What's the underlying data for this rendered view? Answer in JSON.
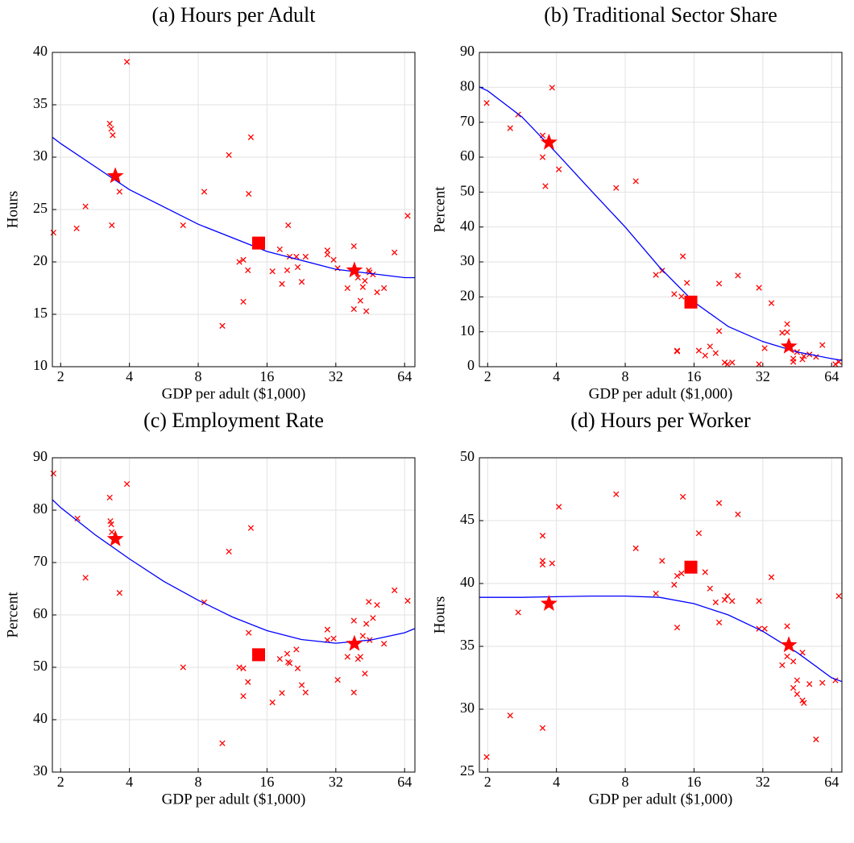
{
  "chart_data": [
    {
      "type": "scatter",
      "title": "(a) Hours per Adult",
      "xlabel": "GDP per adult ($1,000)",
      "ylabel": "Hours",
      "xscale": "log",
      "xlim": [
        1.84,
        71
      ],
      "xticks": [
        2,
        4,
        8,
        16,
        32,
        64
      ],
      "ylim": [
        10,
        40
      ],
      "yticks": [
        10,
        15,
        20,
        25,
        30,
        35,
        40
      ],
      "grid": true,
      "series": [
        {
          "marker": "x",
          "color": "#ff0000",
          "x": [
            1.86,
            2.35,
            2.57,
            3.28,
            3.33,
            3.38,
            3.35,
            3.62,
            3.9,
            6.87,
            8.5,
            10.2,
            10.9,
            12.1,
            12.6,
            12.6,
            13.2,
            13.3,
            13.6,
            16.9,
            18.2,
            18.6,
            19.6,
            19.8,
            20.1,
            21.5,
            21.8,
            22.7,
            23.6,
            29.4,
            29.4,
            31.3,
            32.6,
            36,
            38.4,
            38.4,
            40,
            41,
            42,
            42.9,
            43.5,
            44.6,
            45,
            46.5,
            48.5,
            52,
            57.8,
            66
          ],
          "y": [
            22.8,
            23.2,
            25.3,
            33.2,
            32.7,
            32.1,
            23.5,
            26.7,
            39.1,
            23.5,
            26.7,
            13.9,
            30.2,
            20,
            20.2,
            16.2,
            19.2,
            26.5,
            31.9,
            19.1,
            21.2,
            17.9,
            19.2,
            23.5,
            20.5,
            20.5,
            19.5,
            18.1,
            20.5,
            21.1,
            20.7,
            20.2,
            19.4,
            17.5,
            21.5,
            15.5,
            18.5,
            16.3,
            17.6,
            18.2,
            15.3,
            19.2,
            19,
            18.8,
            17.1,
            17.5,
            20.9,
            24.4
          ]
        },
        {
          "marker": "line",
          "color": "#0000ff",
          "x": [
            1.84,
            2,
            4,
            8,
            16,
            32,
            64,
            71
          ],
          "y": [
            31.9,
            31.3,
            26.9,
            23.6,
            21,
            19.3,
            18.5,
            18.5
          ]
        },
        {
          "marker": "star",
          "color": "#ff0000",
          "x": [
            3.47,
            38.6
          ],
          "y": [
            28.2,
            19.2
          ]
        },
        {
          "marker": "square",
          "color": "#ff0000",
          "x": [
            14.7
          ],
          "y": [
            21.8
          ]
        }
      ]
    },
    {
      "type": "scatter",
      "title": "(b) Traditional Sector Share",
      "xlabel": "GDP per adult ($1,000)",
      "ylabel": "Percent",
      "xscale": "log",
      "xlim": [
        1.84,
        71
      ],
      "xticks": [
        2,
        4,
        8,
        16,
        32,
        64
      ],
      "ylim": [
        0,
        90
      ],
      "yticks": [
        0,
        10,
        20,
        30,
        40,
        50,
        60,
        70,
        80,
        90
      ],
      "grid": true,
      "series": [
        {
          "marker": "x",
          "color": "#ff0000",
          "x": [
            1.98,
            2.51,
            2.72,
            3.48,
            3.48,
            3.58,
            3.83,
            4.1,
            7.3,
            8.9,
            10.9,
            11.6,
            13.1,
            13.5,
            13.5,
            14.1,
            14.3,
            14.9,
            16.8,
            17.9,
            18.8,
            19.9,
            20.6,
            20.6,
            21.8,
            22.4,
            23.5,
            24.9,
            30.8,
            30.8,
            32.6,
            34.9,
            38.9,
            40.9,
            40.9,
            43.5,
            43.5,
            45.2,
            47.7,
            48.4,
            51.2,
            54.7,
            58.3,
            66.5,
            68.8
          ],
          "y": [
            75.5,
            68.3,
            72.2,
            66.2,
            60,
            51.7,
            79.9,
            56.5,
            51.2,
            53.1,
            26.3,
            27.5,
            20.8,
            4.6,
            4.4,
            20.1,
            31.6,
            24,
            4.6,
            3.2,
            5.8,
            3.9,
            10.2,
            23.8,
            1.2,
            0.7,
            1.2,
            26.1,
            22.6,
            0.7,
            5.3,
            18.2,
            9.7,
            12.2,
            9.9,
            2.3,
            1.4,
            4.2,
            2.1,
            3,
            3.5,
            2.8,
            6.2,
            0.7,
            1.4
          ]
        },
        {
          "marker": "line",
          "color": "#0000ff",
          "x": [
            1.84,
            2,
            2.83,
            4,
            5.66,
            8,
            11.3,
            16,
            22.6,
            32,
            45.3,
            64,
            71
          ],
          "y": [
            80.1,
            79,
            71.5,
            61.2,
            50.5,
            40,
            28.5,
            18.5,
            11.5,
            7.2,
            4.2,
            2.3,
            1.8
          ]
        },
        {
          "marker": "star",
          "color": "#ff0000",
          "x": [
            3.71,
            41.6
          ],
          "y": [
            64.2,
            5.8
          ]
        },
        {
          "marker": "square",
          "color": "#ff0000",
          "x": [
            15.5
          ],
          "y": [
            18.5
          ]
        }
      ]
    },
    {
      "type": "scatter",
      "title": "(c) Employment Rate",
      "xlabel": "GDP per adult ($1,000)",
      "ylabel": "Percent",
      "xscale": "log",
      "xlim": [
        1.84,
        71
      ],
      "xticks": [
        2,
        4,
        8,
        16,
        32,
        64
      ],
      "ylim": [
        30,
        90
      ],
      "yticks": [
        30,
        40,
        50,
        60,
        70,
        80,
        90
      ],
      "grid": true,
      "series": [
        {
          "marker": "x",
          "color": "#ff0000",
          "x": [
            1.86,
            2.37,
            2.57,
            3.28,
            3.3,
            3.33,
            3.35,
            3.62,
            3.9,
            6.87,
            8.5,
            10.2,
            10.9,
            12.1,
            12.6,
            12.6,
            13.2,
            13.3,
            13.6,
            16.9,
            18.2,
            18.6,
            19.6,
            19.8,
            20.1,
            21.5,
            21.8,
            22.7,
            23.6,
            29.4,
            29.4,
            31.3,
            32.6,
            36,
            38.4,
            38.4,
            40,
            41,
            42,
            42.9,
            43.5,
            44.6,
            45,
            46.5,
            48.5,
            52,
            57.8,
            66
          ],
          "y": [
            87,
            78.4,
            67.1,
            82.4,
            77.9,
            77.3,
            75.8,
            64.2,
            85,
            50,
            62.4,
            35.5,
            72.1,
            50,
            49.8,
            44.5,
            47.2,
            56.6,
            76.6,
            43.3,
            51.6,
            45.1,
            52.6,
            51,
            50.8,
            53.4,
            49.8,
            46.6,
            45.2,
            57.2,
            55.2,
            55.5,
            47.6,
            52,
            58.9,
            45.2,
            51.6,
            52,
            56,
            48.8,
            58.3,
            62.5,
            55.2,
            59.4,
            61.9,
            54.5,
            64.7,
            62.7
          ]
        },
        {
          "marker": "line",
          "color": "#0000ff",
          "x": [
            1.84,
            2,
            2.83,
            4,
            5.66,
            8,
            11.3,
            16,
            22.6,
            32,
            45.3,
            64,
            71
          ],
          "y": [
            82,
            80.5,
            75.3,
            70.7,
            66.4,
            62.8,
            59.6,
            57,
            55.3,
            54.6,
            55.2,
            56.6,
            57.4
          ]
        },
        {
          "marker": "star",
          "color": "#ff0000",
          "x": [
            3.47,
            38.6
          ],
          "y": [
            74.5,
            54.5
          ]
        },
        {
          "marker": "square",
          "color": "#ff0000",
          "x": [
            14.7
          ],
          "y": [
            52.4
          ]
        }
      ]
    },
    {
      "type": "scatter",
      "title": "(d)  Hours per Worker",
      "xlabel": "GDP per adult ($1,000)",
      "ylabel": "Hours",
      "xscale": "log",
      "xlim": [
        1.84,
        71
      ],
      "xticks": [
        2,
        4,
        8,
        16,
        32,
        64
      ],
      "ylim": [
        25,
        50
      ],
      "yticks": [
        25,
        30,
        35,
        40,
        45,
        50
      ],
      "grid": true,
      "series": [
        {
          "marker": "x",
          "color": "#ff0000",
          "x": [
            1.98,
            2.51,
            2.72,
            3.48,
            3.48,
            3.48,
            3.48,
            3.83,
            4.1,
            7.3,
            8.9,
            10.9,
            11.6,
            13.1,
            13.5,
            13.5,
            14.1,
            14.3,
            16.8,
            17.9,
            18.8,
            19.9,
            20.6,
            20.6,
            21.8,
            22.4,
            23.5,
            24.9,
            30.8,
            30.8,
            32.6,
            34.9,
            38.9,
            40.9,
            40.9,
            43.5,
            43.5,
            45.2,
            45.2,
            47.7,
            47.7,
            48.4,
            51.2,
            54.7,
            58.3,
            66.5,
            68.8
          ],
          "y": [
            26.2,
            29.5,
            37.7,
            43.8,
            41.8,
            41.5,
            28.5,
            41.6,
            46.1,
            47.1,
            42.8,
            39.2,
            41.8,
            39.9,
            36.5,
            40.6,
            40.8,
            46.9,
            44,
            40.9,
            39.6,
            38.5,
            36.9,
            46.4,
            38.7,
            39,
            38.6,
            45.5,
            38.6,
            36.4,
            36.4,
            40.5,
            33.5,
            36.6,
            34.2,
            33.8,
            31.7,
            32.3,
            31.2,
            34.5,
            30.7,
            30.5,
            32,
            27.6,
            32.1,
            32.3,
            39
          ]
        },
        {
          "marker": "line",
          "color": "#0000ff",
          "x": [
            1.84,
            2,
            2.83,
            4,
            5.66,
            8,
            11.3,
            16,
            22.6,
            32,
            45.3,
            64,
            71
          ],
          "y": [
            38.9,
            38.9,
            38.9,
            38.95,
            39,
            39,
            38.9,
            38.4,
            37.5,
            36.2,
            34.5,
            32.5,
            32.2
          ]
        },
        {
          "marker": "star",
          "color": "#ff0000",
          "x": [
            3.71,
            41.6
          ],
          "y": [
            38.4,
            35.1
          ]
        },
        {
          "marker": "square",
          "color": "#ff0000",
          "x": [
            15.5
          ],
          "y": [
            41.3
          ]
        }
      ]
    }
  ]
}
